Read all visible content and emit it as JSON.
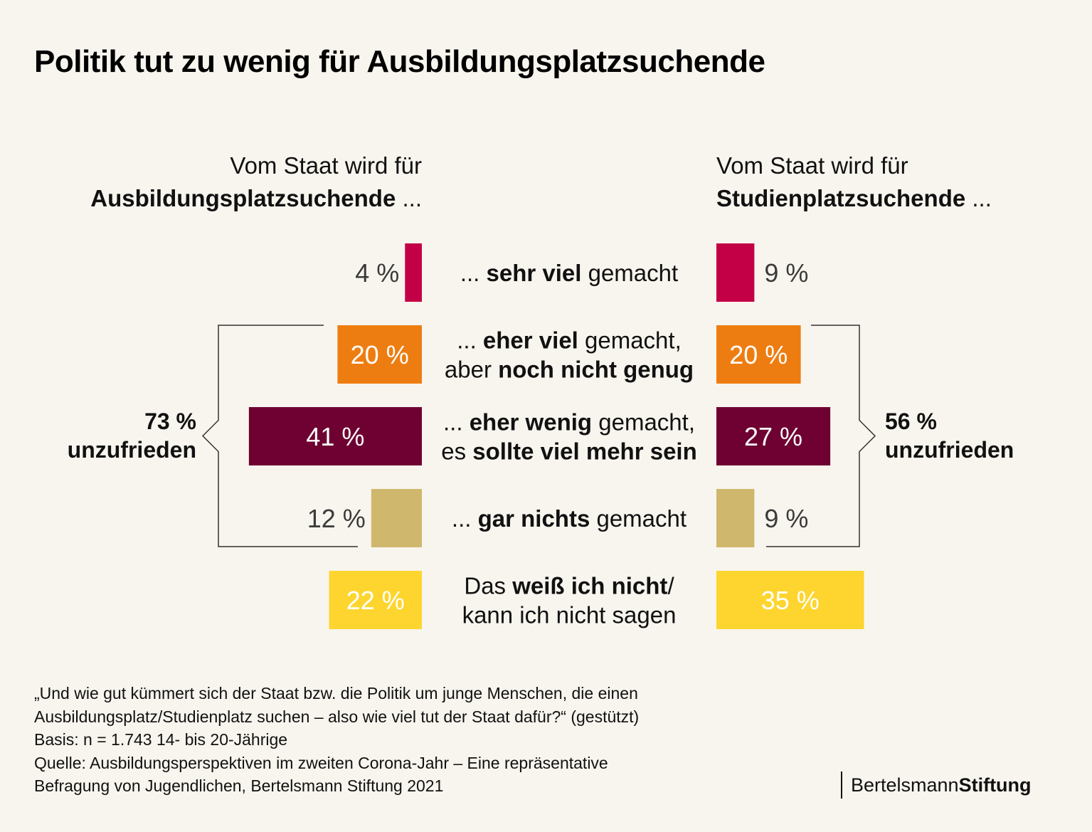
{
  "title": "Politik tut zu wenig für Ausbildungsplatzsuchende",
  "headers": {
    "left": {
      "line1": "Vom Staat wird für",
      "line2_bold": "Ausbildungsplatzsuchende",
      "line2_suffix": " ..."
    },
    "right": {
      "line1": "Vom Staat wird für",
      "line2_bold": "Studienplatzsuchende",
      "line2_suffix": " ..."
    }
  },
  "chart_data": {
    "type": "bar",
    "orientation": "horizontal-diverging",
    "title": "Politik tut zu wenig für Ausbildungsplatzsuchende",
    "unit": "%",
    "categories": [
      "... sehr viel gemacht",
      "... eher viel gemacht, aber noch nicht genug",
      "... eher wenig gemacht, es sollte viel mehr sein",
      "... gar nichts gemacht",
      "Das weiß ich nicht/ kann ich nicht sagen"
    ],
    "category_lines": [
      [
        [
          {
            "t": "... ",
            "b": false
          },
          {
            "t": "sehr viel",
            "b": true
          },
          {
            "t": " gemacht",
            "b": false
          }
        ]
      ],
      [
        [
          {
            "t": "... ",
            "b": false
          },
          {
            "t": "eher viel",
            "b": true
          },
          {
            "t": " gemacht,",
            "b": false
          }
        ],
        [
          {
            "t": "aber ",
            "b": false
          },
          {
            "t": "noch nicht genug",
            "b": true
          }
        ]
      ],
      [
        [
          {
            "t": "... ",
            "b": false
          },
          {
            "t": "eher wenig",
            "b": true
          },
          {
            "t": " gemacht,",
            "b": false
          }
        ],
        [
          {
            "t": "es ",
            "b": false
          },
          {
            "t": "sollte viel mehr sein",
            "b": true
          }
        ]
      ],
      [
        [
          {
            "t": "... ",
            "b": false
          },
          {
            "t": "gar nichts",
            "b": true
          },
          {
            "t": " gemacht",
            "b": false
          }
        ]
      ],
      [
        [
          {
            "t": "Das ",
            "b": false
          },
          {
            "t": "weiß ich nicht",
            "b": true
          },
          {
            "t": "/",
            "b": false
          }
        ],
        [
          {
            "t": "kann ich nicht sagen",
            "b": false
          }
        ]
      ]
    ],
    "colors": [
      "#c30045",
      "#ee7d11",
      "#6e0032",
      "#cfb86d",
      "#fdd52e"
    ],
    "series": [
      {
        "name": "Ausbildungsplatzsuchende",
        "side": "left",
        "values": [
          4,
          20,
          41,
          12,
          22
        ]
      },
      {
        "name": "Studienplatzsuchende",
        "side": "right",
        "values": [
          9,
          20,
          27,
          9,
          35
        ]
      }
    ],
    "value_labels_left": [
      "4 %",
      "20 %",
      "41 %",
      "12 %",
      "22 %"
    ],
    "value_labels_right": [
      "9 %",
      "20 %",
      "27 %",
      "9 %",
      "35 %"
    ],
    "annotations": [
      {
        "side": "left",
        "value": "73 %",
        "label": "unzufrieden",
        "brackets_categories": [
          1,
          2,
          3
        ]
      },
      {
        "side": "right",
        "value": "56 %",
        "label": "unzufrieden",
        "brackets_categories": [
          1,
          2,
          3
        ]
      }
    ],
    "xlim": [
      0,
      45
    ]
  },
  "footnote": [
    "„Und wie gut kümmert sich der Staat bzw. die Politik um junge Menschen, die einen",
    "Ausbildungsplatz/Studienplatz suchen – also wie viel tut der Staat dafür?“ (gestützt)",
    "Basis: n = 1.743 14- bis 20-Jährige",
    "Quelle: Ausbildungsperspektiven im zweiten Corona-Jahr – Eine repräsentative",
    "Befragung von Jugendlichen, Bertelsmann Stiftung 2021"
  ],
  "brand": {
    "regular": "Bertelsmann",
    "bold": "Stiftung"
  }
}
